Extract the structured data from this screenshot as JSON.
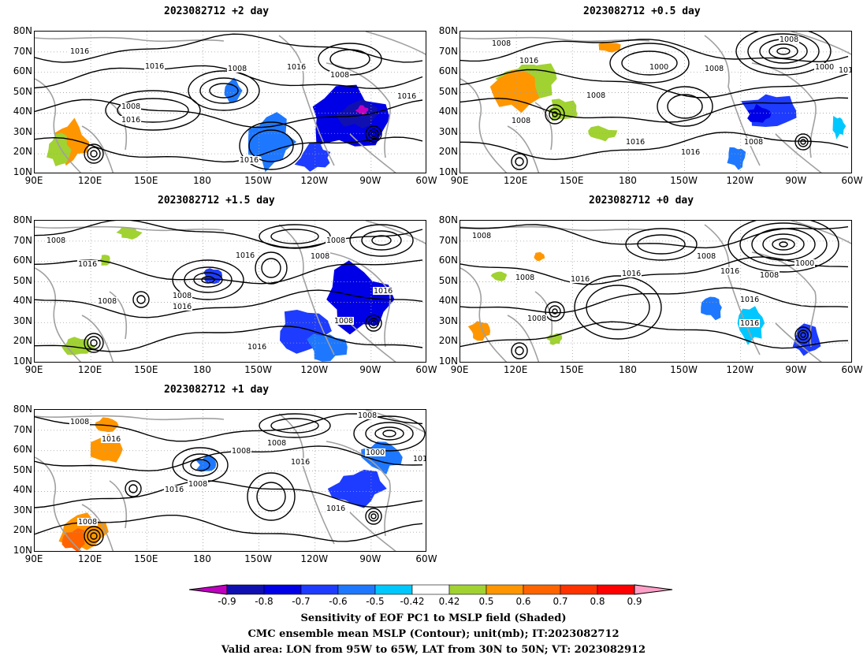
{
  "panels": [
    {
      "id": "p2",
      "title": "2023082712  +2 day"
    },
    {
      "id": "p05",
      "title": "2023082712  +0.5 day"
    },
    {
      "id": "p15",
      "title": "2023082712  +1.5 day"
    },
    {
      "id": "p0",
      "title": "2023082712  +0 day"
    },
    {
      "id": "p1",
      "title": "2023082712  +1 day"
    }
  ],
  "axes": {
    "lat_ticks": [
      "80N",
      "70N",
      "60N",
      "50N",
      "40N",
      "30N",
      "20N",
      "10N"
    ],
    "lon_ticks": [
      "90E",
      "120E",
      "150E",
      "180",
      "150W",
      "120W",
      "90W",
      "60W"
    ]
  },
  "contour_labels": [
    "1000",
    "1008",
    "1016"
  ],
  "colorbar": {
    "ticks": [
      "-0.9",
      "-0.8",
      "-0.7",
      "-0.6",
      "-0.5",
      "-0.42",
      "0.42",
      "0.5",
      "0.6",
      "0.7",
      "0.8",
      "0.9"
    ],
    "colors": [
      "#c000c0",
      "#1010b0",
      "#0000e6",
      "#1e3cff",
      "#1e78ff",
      "#00c8ff",
      "#ffffff",
      "#a0d232",
      "#ff9600",
      "#ff6400",
      "#ff3200",
      "#ff0000",
      "#ffa0c8"
    ]
  },
  "captions": [
    "Sensitivity of EOF PC1 to MSLP field (Shaded)",
    "CMC ensemble mean MSLP (Contour); unit(mb); IT:2023082712",
    "Valid area: LON from 95W to 65W, LAT from 30N to 50N; VT: 2023082912"
  ],
  "colors": {
    "contour": "#000000",
    "coast": "#a0a0a0",
    "grid": "#a0a0a0"
  }
}
